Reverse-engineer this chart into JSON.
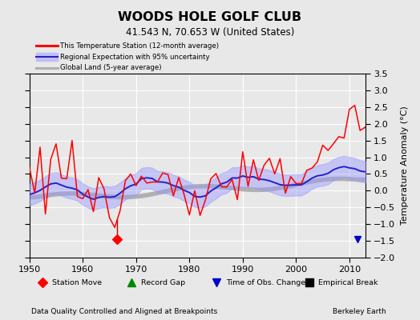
{
  "title": "WOODS HOLE GOLF CLUB",
  "subtitle": "41.543 N, 70.653 W (United States)",
  "xlabel_left": "Data Quality Controlled and Aligned at Breakpoints",
  "xlabel_right": "Berkeley Earth",
  "ylabel": "Temperature Anomaly (°C)",
  "xlim": [
    1950,
    2013
  ],
  "ylim": [
    -2.0,
    3.5
  ],
  "yticks": [
    -2,
    -1.5,
    -1,
    -0.5,
    0,
    0.5,
    1,
    1.5,
    2,
    2.5,
    3,
    3.5
  ],
  "xticks": [
    1950,
    1960,
    1970,
    1980,
    1990,
    2000,
    2010
  ],
  "bg_color": "#e8e8e8",
  "plot_bg_color": "#e8e8e8",
  "station_move_x": 1966.5,
  "station_move_y": -1.45,
  "station_move_line_top": -0.85,
  "time_obs_change_x": 2011.5,
  "time_obs_change_y": -1.45,
  "line_red": "#ff0000",
  "line_blue": "#2222cc",
  "band_color": "#9999ff",
  "line_gray": "#b0b0b0",
  "marker_colors": [
    "#ff0000",
    "#008800",
    "#0000cc",
    "#000000"
  ],
  "marker_shapes": [
    "D",
    "^",
    "v",
    "s"
  ],
  "marker_labels": [
    "Station Move",
    "Record Gap",
    "Time of Obs. Change",
    "Empirical Break"
  ]
}
